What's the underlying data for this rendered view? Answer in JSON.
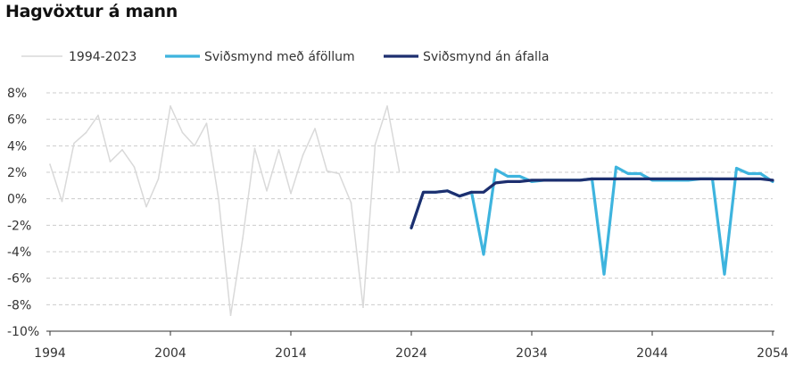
{
  "chart_data": {
    "type": "line",
    "title": "Hagvöxtur á mann",
    "xlabel": "",
    "ylabel": "",
    "xlim": [
      1994,
      2054
    ],
    "ylim": [
      -10,
      8
    ],
    "x_ticks": [
      1994,
      2004,
      2014,
      2024,
      2034,
      2044,
      2054
    ],
    "x_tick_labels": [
      "1994",
      "2004",
      "2014",
      "2024",
      "2034",
      "2044",
      "2054"
    ],
    "y_ticks": [
      -10,
      -8,
      -6,
      -4,
      -2,
      0,
      2,
      4,
      6,
      8
    ],
    "y_tick_labels": [
      "-10%",
      "-8%",
      "-6%",
      "-4%",
      "-2%",
      "0%",
      "2%",
      "4%",
      "6%",
      "8%"
    ],
    "grid": "horizontal dashed",
    "legend_position": "top",
    "series": [
      {
        "name": "1994-2023",
        "color": "#d9d9d9",
        "x": [
          1994,
          1995,
          1996,
          1997,
          1998,
          1999,
          2000,
          2001,
          2002,
          2003,
          2004,
          2005,
          2006,
          2007,
          2008,
          2009,
          2010,
          2011,
          2012,
          2013,
          2014,
          2015,
          2016,
          2017,
          2018,
          2019,
          2020,
          2021,
          2022,
          2023
        ],
        "values": [
          2.6,
          -0.2,
          4.2,
          5.0,
          6.3,
          2.8,
          3.7,
          2.4,
          -0.6,
          1.5,
          7.0,
          5.0,
          4.0,
          5.7,
          0.0,
          -8.8,
          -3.0,
          3.8,
          0.6,
          3.7,
          0.4,
          3.3,
          5.3,
          2.1,
          1.9,
          -0.3,
          -8.2,
          4.1,
          7.0,
          2.1
        ]
      },
      {
        "name": "Sviðsmynd með áföllum",
        "color": "#3eb4de",
        "x": [
          2024,
          2025,
          2026,
          2027,
          2028,
          2029,
          2030,
          2031,
          2032,
          2033,
          2034,
          2035,
          2036,
          2037,
          2038,
          2039,
          2040,
          2041,
          2042,
          2043,
          2044,
          2045,
          2046,
          2047,
          2048,
          2049,
          2050,
          2051,
          2052,
          2053,
          2054
        ],
        "values": [
          -2.2,
          0.5,
          0.5,
          0.6,
          0.2,
          0.5,
          -4.2,
          2.2,
          1.7,
          1.7,
          1.3,
          1.4,
          1.4,
          1.4,
          1.4,
          1.5,
          -5.7,
          2.4,
          1.9,
          1.9,
          1.4,
          1.4,
          1.4,
          1.4,
          1.5,
          1.5,
          -5.7,
          2.3,
          1.9,
          1.9,
          1.3
        ]
      },
      {
        "name": "Sviðsmynd án áfalla",
        "color": "#1d2f6f",
        "x": [
          2024,
          2025,
          2026,
          2027,
          2028,
          2029,
          2030,
          2031,
          2032,
          2033,
          2034,
          2035,
          2036,
          2037,
          2038,
          2039,
          2040,
          2041,
          2042,
          2043,
          2044,
          2045,
          2046,
          2047,
          2048,
          2049,
          2050,
          2051,
          2052,
          2053,
          2054
        ],
        "values": [
          -2.2,
          0.5,
          0.5,
          0.6,
          0.2,
          0.5,
          0.5,
          1.2,
          1.3,
          1.3,
          1.4,
          1.4,
          1.4,
          1.4,
          1.4,
          1.5,
          1.5,
          1.5,
          1.5,
          1.5,
          1.5,
          1.5,
          1.5,
          1.5,
          1.5,
          1.5,
          1.5,
          1.5,
          1.5,
          1.5,
          1.4
        ]
      }
    ]
  }
}
